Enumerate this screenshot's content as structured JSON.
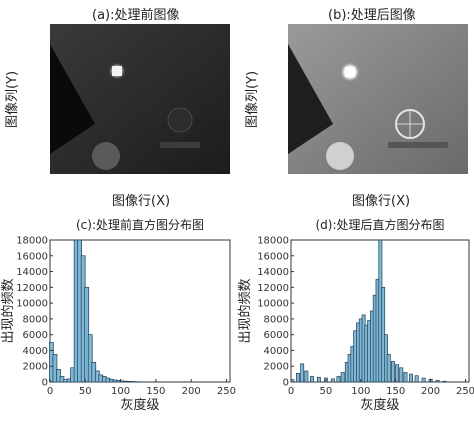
{
  "panels": {
    "a": {
      "title": "(a):处理前图像",
      "xlabel": "图像行(X)",
      "ylabel": "图像列(Y)"
    },
    "b": {
      "title": "(b):处理后图像",
      "xlabel": "图像行(X)",
      "ylabel": "图像列(Y)"
    }
  },
  "colors": {
    "bar_fill": "#7fb8d6",
    "bar_edge": "#1f3f57",
    "axis": "#333333"
  },
  "chart_data": [
    {
      "type": "bar",
      "title": "(c):处理前直方图分布图",
      "xlabel": "灰度级",
      "ylabel": "出现的频数",
      "xlim": [
        0,
        255
      ],
      "ylim": [
        0,
        18000
      ],
      "xticks": [
        "0",
        "50",
        "100",
        "150",
        "200",
        "250"
      ],
      "yticks": [
        "0",
        "2000",
        "4000",
        "6000",
        "8000",
        "10000",
        "12000",
        "14000",
        "16000",
        "18000"
      ],
      "x": [
        2,
        7,
        12,
        17,
        22,
        27,
        32,
        37,
        42,
        47,
        52,
        57,
        62,
        67,
        72,
        77,
        82,
        87,
        92,
        97,
        102,
        107,
        112,
        117,
        122
      ],
      "values": [
        5000,
        3500,
        1600,
        700,
        300,
        400,
        1800,
        18000,
        18000,
        16000,
        12000,
        6000,
        2500,
        1400,
        900,
        700,
        500,
        350,
        250,
        200,
        150,
        100,
        80,
        60,
        40
      ]
    },
    {
      "type": "bar",
      "title": "(d):处理后直方图分布图",
      "xlabel": "灰度级",
      "ylabel": "出现的频数",
      "xlim": [
        0,
        255
      ],
      "ylim": [
        0,
        18000
      ],
      "xticks": [
        "0",
        "50",
        "100",
        "150",
        "200",
        "250"
      ],
      "yticks": [
        "0",
        "2000",
        "4000",
        "6000",
        "8000",
        "10000",
        "12000",
        "14000",
        "16000",
        "18000"
      ],
      "x": [
        2,
        10,
        16,
        22,
        30,
        40,
        50,
        60,
        68,
        74,
        80,
        84,
        88,
        92,
        96,
        100,
        104,
        108,
        112,
        116,
        120,
        124,
        128,
        132,
        136,
        140,
        146,
        152,
        158,
        164,
        172,
        180,
        190,
        200,
        210,
        220
      ],
      "values": [
        300,
        1100,
        2300,
        1400,
        700,
        600,
        500,
        400,
        700,
        1200,
        2500,
        3500,
        4500,
        6500,
        7500,
        8000,
        8500,
        7200,
        7800,
        9000,
        11000,
        13000,
        18000,
        12000,
        6000,
        3500,
        2600,
        2200,
        1800,
        1200,
        1000,
        800,
        500,
        350,
        200,
        100
      ]
    }
  ]
}
